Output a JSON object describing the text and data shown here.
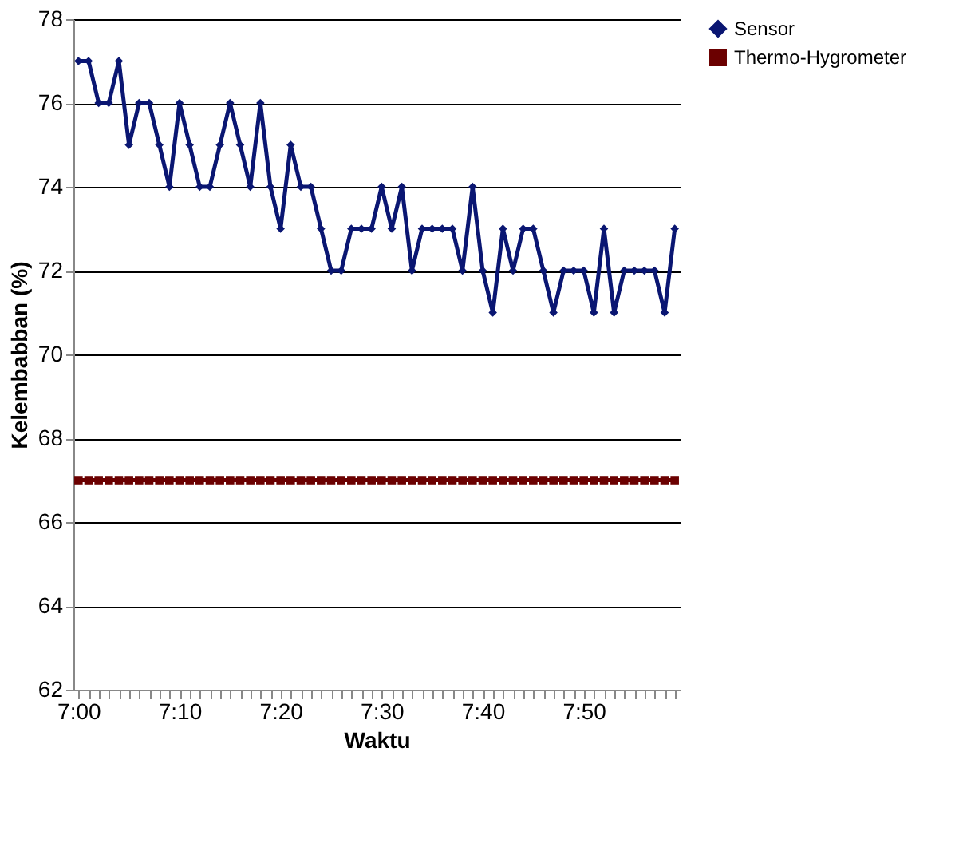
{
  "chart_data": {
    "type": "line",
    "xlabel": "Waktu",
    "ylabel": "Kelembabban (%)",
    "categories": [
      "7:00",
      null,
      null,
      null,
      null,
      null,
      null,
      null,
      null,
      null,
      "7:10",
      null,
      null,
      null,
      null,
      null,
      null,
      null,
      null,
      null,
      "7:20",
      null,
      null,
      null,
      null,
      null,
      null,
      null,
      null,
      null,
      "7:30",
      null,
      null,
      null,
      null,
      null,
      null,
      null,
      null,
      null,
      "7:40",
      null,
      null,
      null,
      null,
      null,
      null,
      null,
      null,
      null,
      "7:50",
      null,
      null,
      null,
      null,
      null,
      null,
      null,
      null,
      null
    ],
    "series": [
      {
        "name": "Sensor",
        "color": "#0a1672",
        "marker": "diamond",
        "values": [
          77,
          77,
          76,
          76,
          77,
          75,
          76,
          76,
          75,
          74,
          76,
          75,
          74,
          74,
          75,
          76,
          75,
          74,
          76,
          74,
          73,
          75,
          74,
          74,
          73,
          72,
          72,
          73,
          73,
          73,
          74,
          73,
          74,
          72,
          73,
          73,
          73,
          73,
          72,
          74,
          72,
          71,
          73,
          72,
          73,
          73,
          72,
          71,
          72,
          72,
          72,
          71,
          73,
          71,
          72,
          72,
          72,
          72,
          71,
          73
        ]
      },
      {
        "name": "Thermo-Hygrometer",
        "color": "#6b0000",
        "marker": "square",
        "values": [
          67,
          67,
          67,
          67,
          67,
          67,
          67,
          67,
          67,
          67,
          67,
          67,
          67,
          67,
          67,
          67,
          67,
          67,
          67,
          67,
          67,
          67,
          67,
          67,
          67,
          67,
          67,
          67,
          67,
          67,
          67,
          67,
          67,
          67,
          67,
          67,
          67,
          67,
          67,
          67,
          67,
          67,
          67,
          67,
          67,
          67,
          67,
          67,
          67,
          67,
          67,
          67,
          67,
          67,
          67,
          67,
          67,
          67,
          67,
          67
        ]
      }
    ],
    "ylim": [
      62,
      78
    ],
    "yticks": [
      62,
      64,
      66,
      68,
      70,
      72,
      74,
      76,
      78
    ],
    "grid": "y",
    "legend": "right"
  }
}
